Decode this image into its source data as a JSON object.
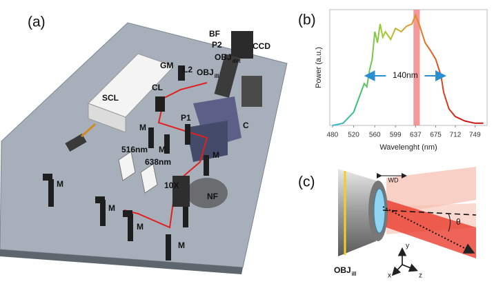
{
  "panel_a": {
    "label": "(a)",
    "labels": [
      {
        "text": "SCL"
      },
      {
        "text": "CL"
      },
      {
        "text": "GM"
      },
      {
        "text": "L2"
      },
      {
        "text": "OBJ",
        "sub": "ill"
      },
      {
        "text": "BF"
      },
      {
        "text": "P2"
      },
      {
        "text": "OBJ",
        "sub": "det"
      },
      {
        "text": "CCD"
      },
      {
        "text": "P1"
      },
      {
        "text": "C"
      },
      {
        "text": "M"
      },
      {
        "text": "M"
      },
      {
        "text": "M"
      },
      {
        "text": "M"
      },
      {
        "text": "M"
      },
      {
        "text": "M"
      },
      {
        "text": "M"
      },
      {
        "text": "516nm"
      },
      {
        "text": "638nm"
      },
      {
        "text": "10X"
      },
      {
        "text": "NF"
      }
    ]
  },
  "chart_data": {
    "type": "line",
    "label": "(b)",
    "x_label": "Wavelenght (nm)",
    "y_label": "Power (a.u.)",
    "x": [
      480,
      500,
      520,
      530,
      540,
      545,
      550,
      555,
      560,
      565,
      570,
      575,
      580,
      590,
      599,
      610,
      620,
      630,
      637,
      645,
      655,
      665,
      675,
      685,
      690,
      700,
      712,
      730,
      749,
      765
    ],
    "series": [
      {
        "values": [
          0.0,
          0.02,
          0.12,
          0.25,
          0.38,
          0.35,
          0.5,
          0.6,
          0.85,
          0.75,
          0.92,
          0.8,
          0.85,
          0.78,
          0.88,
          0.85,
          0.9,
          0.92,
          1.0,
          0.9,
          0.75,
          0.68,
          0.6,
          0.45,
          0.3,
          0.15,
          0.08,
          0.04,
          0.02,
          0.02
        ]
      }
    ],
    "line_gradient": [
      "#3ab8e0",
      "#36c07a",
      "#9ccc30",
      "#e0a030",
      "#e05a20",
      "#d01010",
      "#d01010"
    ],
    "xlim": [
      475,
      772
    ],
    "ylim": [
      0,
      1.05
    ],
    "xticks": [
      480,
      520,
      560,
      599,
      637,
      675,
      712,
      749
    ],
    "highlight": {
      "x": [
        633,
        645
      ],
      "color": "#f08080"
    },
    "annotation": {
      "text": "140nm",
      "x": [
        545,
        690
      ],
      "y": 0.45,
      "color": "#2a8fd0"
    }
  },
  "panel_c": {
    "label": "(c)",
    "wd": "WD",
    "theta": "θ",
    "objective": {
      "text": "OBJ",
      "sub": "ill"
    },
    "axes": [
      "x",
      "y",
      "z"
    ]
  }
}
